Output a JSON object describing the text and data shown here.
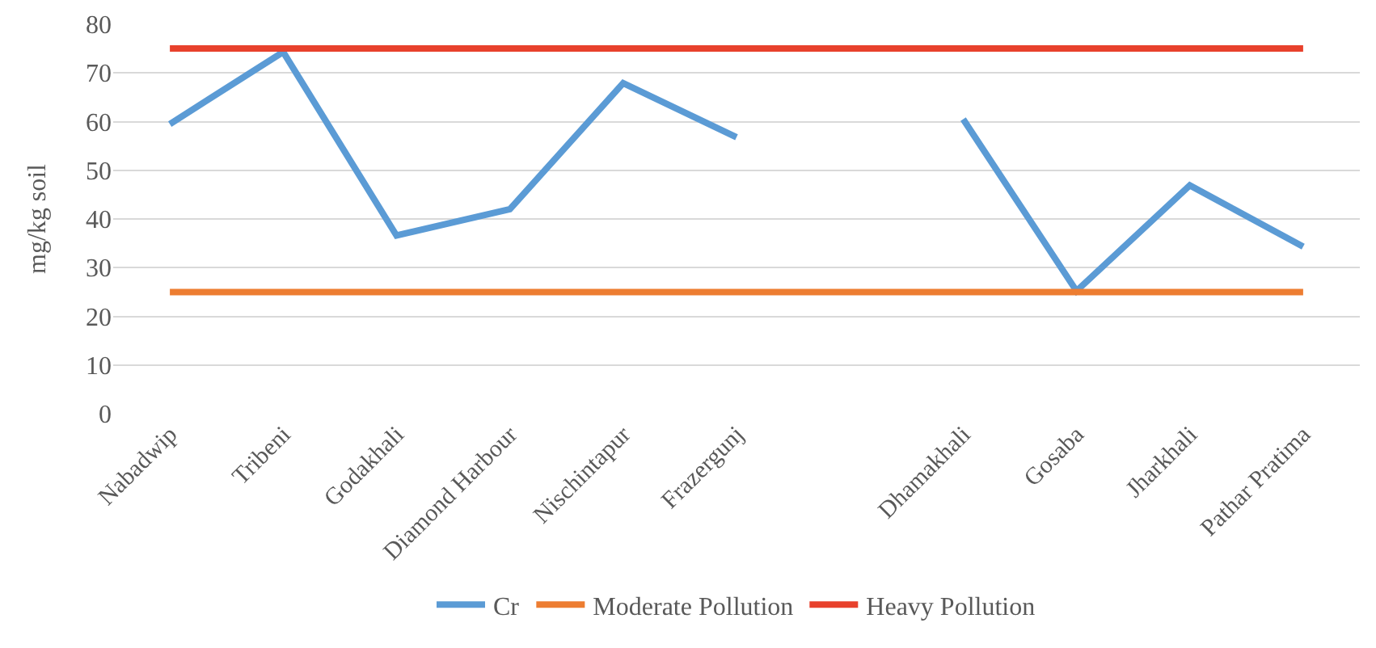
{
  "chart_data": {
    "type": "line",
    "ylabel": "mg/kg soil",
    "categories": [
      "Nabadwip",
      "Tribeni",
      "Godakhali",
      "Diamond Harbour",
      "Nischintapur",
      "Frazergunj",
      null,
      "Dhamakhali",
      "Gosaba",
      "Jharkhali",
      "Pathar Pratima"
    ],
    "series": [
      {
        "name": "Cr",
        "color": "#5b9bd5",
        "values": [
          59.5,
          74.3,
          36.6,
          42,
          67.9,
          56.8,
          null,
          60.5,
          25.2,
          46.9,
          34.3
        ]
      },
      {
        "name": "Moderate Pollution",
        "color": "#ed7d31",
        "values": [
          25,
          25,
          25,
          25,
          25,
          25,
          25,
          25,
          25,
          25,
          25
        ]
      },
      {
        "name": "Heavy Pollution",
        "color": "#e8412c",
        "values": [
          75,
          75,
          75,
          75,
          75,
          75,
          75,
          75,
          75,
          75,
          75
        ]
      }
    ],
    "ylim": [
      0,
      80
    ],
    "yticks": [
      0,
      10,
      20,
      30,
      40,
      50,
      60,
      70,
      80
    ],
    "grid": "y",
    "legend": "bottom",
    "marker": "none",
    "line_style": "solid"
  }
}
